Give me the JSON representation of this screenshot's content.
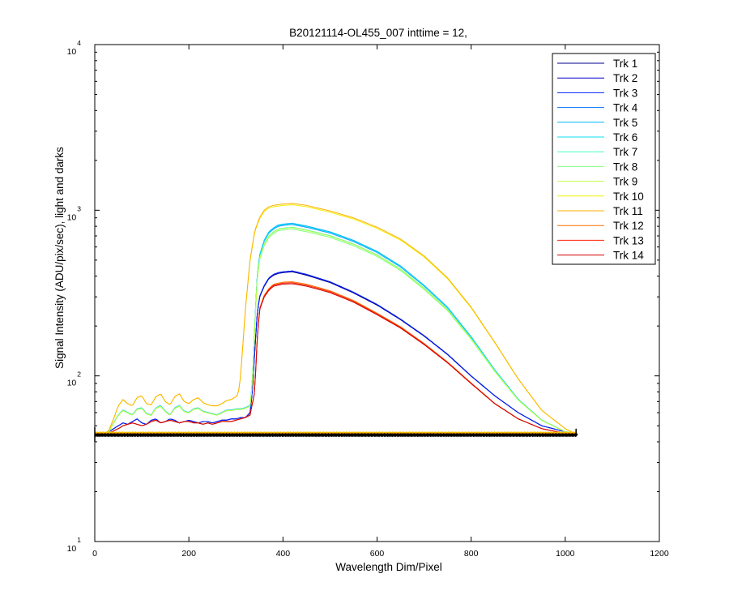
{
  "chart_data": {
    "type": "line",
    "title": "B20121114-OL455_007 inttime = 12,",
    "xlabel": "Wavelength Dim/Pixel",
    "ylabel": "Signal Intensity (ADU/pix/sec), light and darks",
    "xlim": [
      0,
      1200
    ],
    "ylim": [
      10,
      10000
    ],
    "yscale": "log",
    "xticks": [
      "0",
      "200",
      "400",
      "600",
      "800",
      "1000",
      "1200"
    ],
    "yticks": [
      {
        "base": "10",
        "exp": "1"
      },
      {
        "base": "10",
        "exp": "2"
      },
      {
        "base": "10",
        "exp": "3"
      },
      {
        "base": "10",
        "exp": "4"
      }
    ],
    "legend_position": "top-right",
    "dark_level": 44,
    "dark_color": "#000000",
    "series": [
      {
        "name": "Trk 1",
        "color": "#00008f",
        "profile": "low",
        "peak": 425
      },
      {
        "name": "Trk 2",
        "color": "#0000c8",
        "profile": "low",
        "peak": 430
      },
      {
        "name": "Trk 3",
        "color": "#0020ff",
        "profile": "low",
        "peak": 430
      },
      {
        "name": "Trk 4",
        "color": "#0070ff",
        "profile": "mid",
        "peak": 820
      },
      {
        "name": "Trk 5",
        "color": "#00b0ff",
        "profile": "mid",
        "peak": 835
      },
      {
        "name": "Trk 6",
        "color": "#10e0f0",
        "profile": "mid",
        "peak": 825
      },
      {
        "name": "Trk 7",
        "color": "#40ffc0",
        "profile": "mid",
        "peak": 790
      },
      {
        "name": "Trk 8",
        "color": "#80ff80",
        "profile": "mid",
        "peak": 770
      },
      {
        "name": "Trk 9",
        "color": "#c0ff40",
        "profile": "mid",
        "peak": 785
      },
      {
        "name": "Trk 10",
        "color": "#f0f000",
        "profile": "high",
        "peak": 1080
      },
      {
        "name": "Trk 11",
        "color": "#ffb000",
        "profile": "high",
        "peak": 1100
      },
      {
        "name": "Trk 12",
        "color": "#ff7000",
        "profile": "red",
        "peak": 370
      },
      {
        "name": "Trk 13",
        "color": "#ff2000",
        "profile": "red",
        "peak": 365
      },
      {
        "name": "Trk 14",
        "color": "#d00000",
        "profile": "red",
        "peak": 360
      }
    ],
    "profiles": {
      "low": {
        "x": [
          0,
          20,
          30,
          50,
          60,
          70,
          80,
          90,
          100,
          110,
          120,
          130,
          140,
          150,
          160,
          170,
          180,
          190,
          200,
          210,
          220,
          230,
          240,
          250,
          260,
          270,
          280,
          290,
          300,
          310,
          320,
          330,
          335,
          340,
          345,
          350,
          360,
          370,
          380,
          390,
          400,
          420,
          450,
          500,
          550,
          600,
          650,
          700,
          750,
          800,
          850,
          900,
          950,
          1000,
          1020
        ],
        "y": [
          44,
          44,
          46,
          50,
          52,
          51,
          53,
          55,
          52,
          51,
          54,
          55,
          52,
          53,
          55,
          54,
          52,
          53,
          54,
          53,
          52,
          53,
          53,
          52,
          53,
          54,
          54,
          55,
          55,
          56,
          56,
          60,
          80,
          140,
          230,
          300,
          350,
          390,
          410,
          420,
          425,
          430,
          410,
          370,
          320,
          270,
          220,
          175,
          135,
          100,
          76,
          60,
          50,
          46,
          45
        ]
      },
      "mid": {
        "x": [
          0,
          20,
          30,
          40,
          50,
          60,
          70,
          80,
          90,
          100,
          110,
          120,
          130,
          140,
          150,
          160,
          170,
          180,
          190,
          200,
          210,
          220,
          230,
          240,
          250,
          260,
          270,
          280,
          290,
          300,
          310,
          320,
          330,
          335,
          340,
          345,
          350,
          360,
          370,
          380,
          390,
          400,
          420,
          450,
          500,
          550,
          600,
          650,
          700,
          750,
          800,
          850,
          900,
          950,
          1000,
          1020
        ],
        "y": [
          44,
          44,
          46,
          52,
          58,
          62,
          60,
          58,
          63,
          64,
          59,
          58,
          64,
          66,
          61,
          58,
          64,
          66,
          61,
          60,
          63,
          64,
          61,
          60,
          59,
          58,
          60,
          62,
          62,
          63,
          63,
          64,
          66,
          90,
          200,
          380,
          520,
          640,
          720,
          760,
          790,
          800,
          810,
          780,
          720,
          640,
          550,
          450,
          345,
          255,
          170,
          108,
          72,
          54,
          46,
          45
        ]
      },
      "high": {
        "x": [
          0,
          20,
          30,
          40,
          50,
          60,
          70,
          80,
          90,
          100,
          110,
          120,
          130,
          140,
          150,
          160,
          170,
          180,
          190,
          200,
          210,
          220,
          230,
          240,
          250,
          260,
          270,
          280,
          290,
          300,
          305,
          310,
          320,
          330,
          340,
          350,
          360,
          370,
          380,
          390,
          400,
          420,
          450,
          500,
          550,
          600,
          650,
          700,
          750,
          800,
          850,
          900,
          950,
          1000,
          1020
        ],
        "y": [
          44,
          44,
          47,
          55,
          66,
          72,
          68,
          66,
          74,
          76,
          68,
          67,
          75,
          78,
          70,
          67,
          75,
          78,
          70,
          68,
          72,
          74,
          69,
          67,
          66,
          66,
          68,
          71,
          72,
          75,
          78,
          100,
          250,
          500,
          750,
          900,
          1000,
          1050,
          1070,
          1080,
          1090,
          1100,
          1070,
          990,
          900,
          790,
          670,
          530,
          390,
          260,
          160,
          96,
          62,
          48,
          45
        ]
      },
      "red": {
        "x": [
          0,
          20,
          30,
          50,
          60,
          70,
          80,
          90,
          100,
          110,
          120,
          130,
          140,
          150,
          160,
          170,
          180,
          190,
          200,
          210,
          220,
          230,
          240,
          250,
          260,
          270,
          280,
          290,
          300,
          310,
          320,
          330,
          340,
          345,
          350,
          360,
          370,
          380,
          390,
          400,
          420,
          450,
          500,
          550,
          600,
          650,
          700,
          750,
          800,
          850,
          900,
          950,
          1000,
          1020
        ],
        "y": [
          44,
          44,
          45,
          48,
          50,
          51,
          52,
          51,
          50,
          51,
          53,
          54,
          52,
          53,
          54,
          53,
          52,
          53,
          53,
          52,
          52,
          51,
          52,
          51,
          52,
          53,
          53,
          53,
          54,
          55,
          56,
          58,
          80,
          160,
          250,
          300,
          330,
          350,
          355,
          360,
          362,
          350,
          320,
          280,
          235,
          195,
          155,
          120,
          90,
          68,
          55,
          48,
          45,
          45
        ]
      }
    }
  }
}
